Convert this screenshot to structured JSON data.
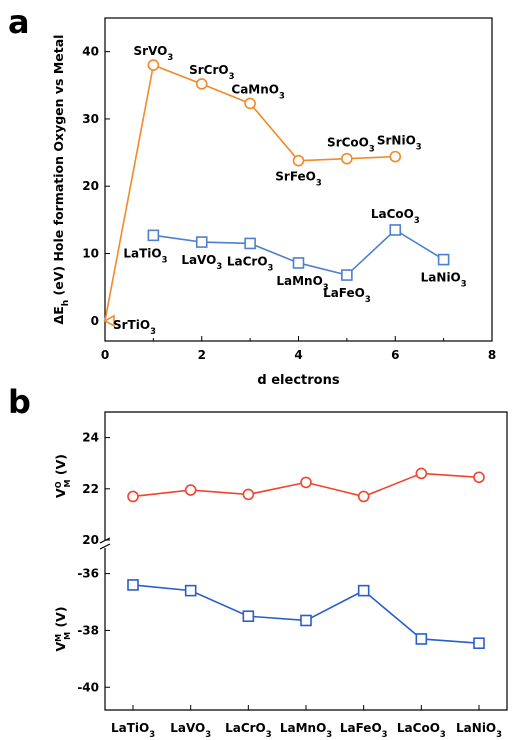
{
  "panels": {
    "a": {
      "letter": "a"
    },
    "b": {
      "letter": "b"
    }
  },
  "colors": {
    "orange": "#F28A28",
    "blue": "#4F7FD0",
    "red": "#F0442E",
    "blue_dark": "#2A5EC8"
  },
  "chart_data": [
    {
      "panel": "a",
      "type": "line",
      "xlabel": "d electrons",
      "ylabel": {
        "prefix": "ΔE",
        "sub": "h",
        "rest": " (eV) Hole formation Oxygen vs Metal"
      },
      "xlim": [
        0,
        8
      ],
      "ylim": [
        -3,
        45
      ],
      "xticks": [
        0,
        2,
        4,
        6,
        8
      ],
      "yticks": [
        0,
        10,
        20,
        30,
        40
      ],
      "series": [
        {
          "color": "#F28A28",
          "marker": "circle",
          "points": [
            {
              "x": 0,
              "y": 0,
              "marker": "triangle",
              "label": {
                "base": "SrTi",
                "o": "O",
                "sub": "3"
              }
            },
            {
              "x": 1,
              "y": 38.0,
              "label": {
                "base": "SrV",
                "o": "O",
                "sub": "3"
              }
            },
            {
              "x": 2,
              "y": 35.2,
              "label": {
                "base": "SrCr",
                "o": "O",
                "sub": "3"
              }
            },
            {
              "x": 3,
              "y": 32.3,
              "label": {
                "base": "CaMn",
                "o": "O",
                "sub": "3"
              }
            },
            {
              "x": 4,
              "y": 23.8,
              "label": {
                "base": "SrFe",
                "o": "O",
                "sub": "3"
              }
            },
            {
              "x": 5,
              "y": 24.1,
              "label": {
                "base": "SrCo",
                "o": "O",
                "sub": "3"
              }
            },
            {
              "x": 6,
              "y": 24.4,
              "label": {
                "base": "SrNi",
                "o": "O",
                "sub": "3"
              }
            }
          ]
        },
        {
          "color": "#4F7FD0",
          "marker": "square",
          "points": [
            {
              "x": 1,
              "y": 12.7,
              "label": {
                "base": "LaTi",
                "o": "O",
                "sub": "3"
              }
            },
            {
              "x": 2,
              "y": 11.7,
              "label": {
                "base": "LaV",
                "o": "O",
                "sub": "3"
              }
            },
            {
              "x": 3,
              "y": 11.5,
              "label": {
                "base": "LaCr",
                "o": "O",
                "sub": "3"
              }
            },
            {
              "x": 4,
              "y": 8.6,
              "label": {
                "base": "LaMn",
                "o": "O",
                "sub": "3"
              }
            },
            {
              "x": 5,
              "y": 6.8,
              "label": {
                "base": "LaFe",
                "o": "O",
                "sub": "3"
              }
            },
            {
              "x": 6,
              "y": 13.5,
              "label": {
                "base": "LaCo",
                "o": "O",
                "sub": "3"
              }
            },
            {
              "x": 7,
              "y": 9.1,
              "label": {
                "base": "LaNi",
                "o": "O",
                "sub": "3"
              }
            }
          ]
        }
      ]
    },
    {
      "panel": "b",
      "type": "line",
      "categories": [
        {
          "base": "LaTi",
          "o": "O",
          "sub": "3"
        },
        {
          "base": "LaV",
          "o": "O",
          "sub": "3"
        },
        {
          "base": "LaCr",
          "o": "O",
          "sub": "3"
        },
        {
          "base": "LaMn",
          "o": "O",
          "sub": "3"
        },
        {
          "base": "LaFe",
          "o": "O",
          "sub": "3"
        },
        {
          "base": "LaCo",
          "o": "O",
          "sub": "3"
        },
        {
          "base": "LaNi",
          "o": "O",
          "sub": "3"
        }
      ],
      "axes": [
        {
          "ylabel": {
            "prefix": "V",
            "sup": "O",
            "sub": "M",
            "rest": " (V)"
          },
          "ylim": [
            20,
            25
          ],
          "yticks": [
            20,
            22,
            24
          ],
          "series": [
            {
              "color": "#F0442E",
              "marker": "circle",
              "values": [
                21.7,
                21.95,
                21.78,
                22.25,
                21.7,
                22.6,
                22.45
              ]
            }
          ]
        },
        {
          "ylabel": {
            "prefix": "V",
            "sup": "M",
            "sub": "M",
            "rest": " (V)"
          },
          "ylim": [
            -40.8,
            -35.1
          ],
          "yticks": [
            -40,
            -38,
            -36
          ],
          "series": [
            {
              "color": "#2A5EC8",
              "marker": "square",
              "values": [
                -36.4,
                -36.6,
                -37.5,
                -37.65,
                -36.6,
                -38.3,
                -38.45
              ]
            }
          ]
        }
      ]
    }
  ]
}
